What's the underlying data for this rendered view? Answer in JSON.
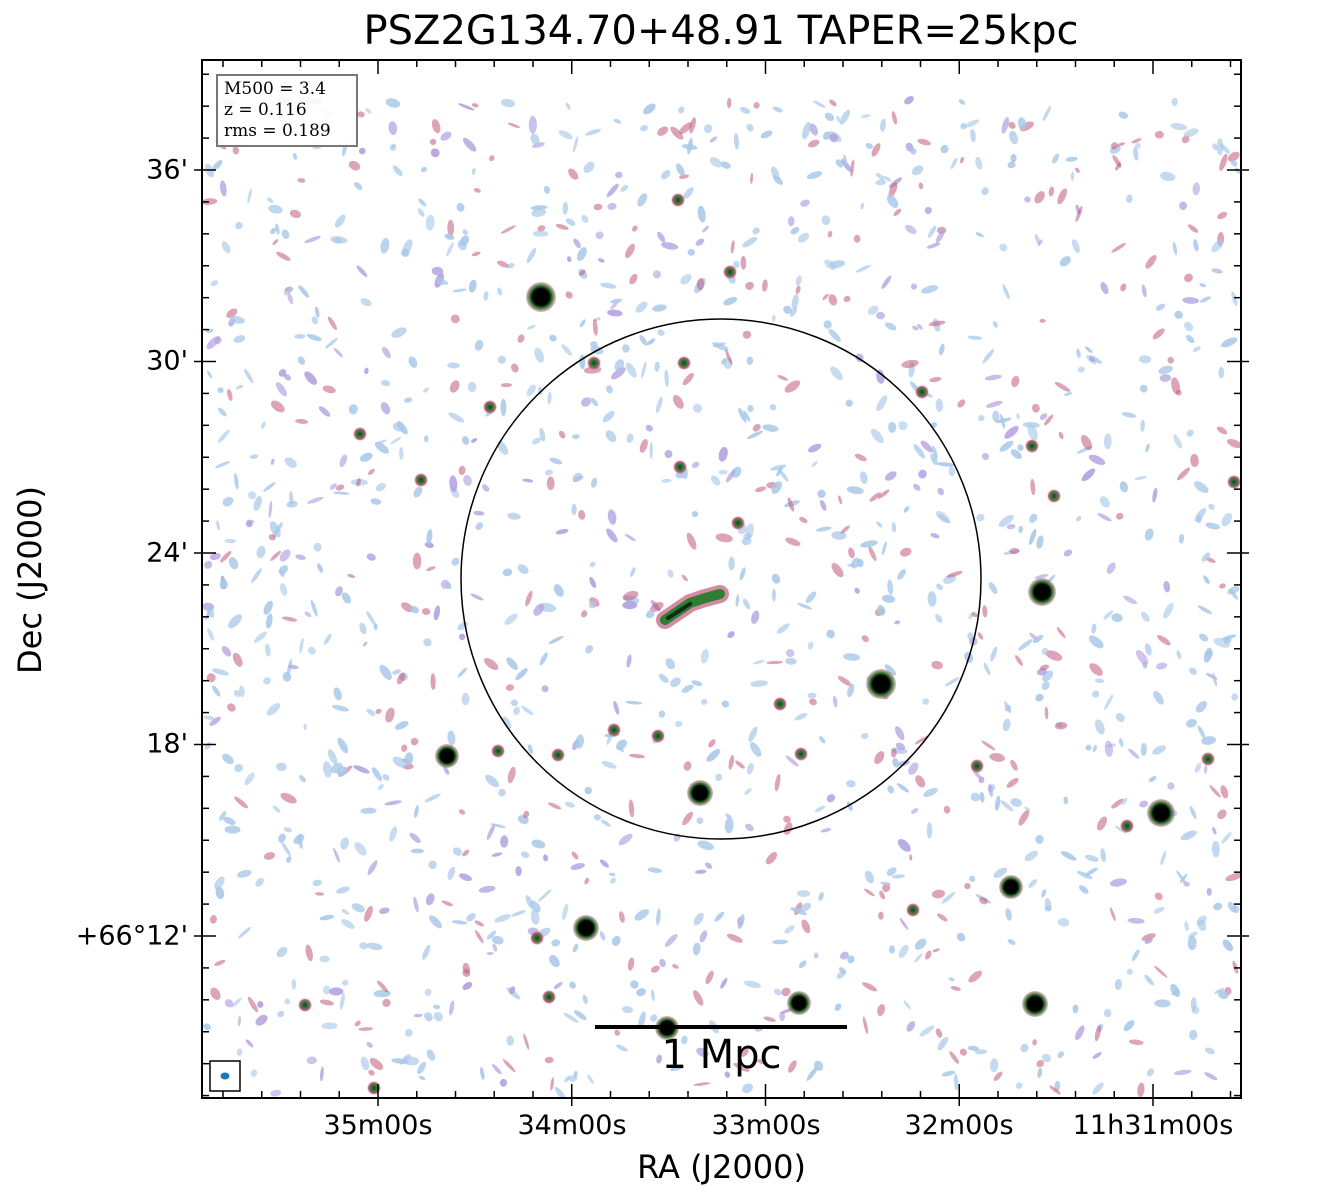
{
  "title": "PSZ2G134.70+48.91 TAPER=25kpc",
  "axes": {
    "xlabel": "RA (J2000)",
    "ylabel": "Dec (J2000)",
    "xticks": [
      "35m00s",
      "34m00s",
      "33m00s",
      "32m00s",
      "11h31m00s"
    ],
    "yticks": [
      "36'",
      "30'",
      "24'",
      "18'",
      "+66°12'"
    ]
  },
  "info": {
    "m500": "M500 = 3.4",
    "z": "z = 0.116",
    "rms": "rms = 0.189"
  },
  "scalebar": {
    "label": "1 Mpc"
  },
  "colors": {
    "faint_emission": "#a8c8e8",
    "mid_emission": "#b0a0e0",
    "bright_emission": "#c05a7a",
    "source_core": "#000000",
    "source_ring": "#2e7d32",
    "beam": "#1f77b4"
  }
}
